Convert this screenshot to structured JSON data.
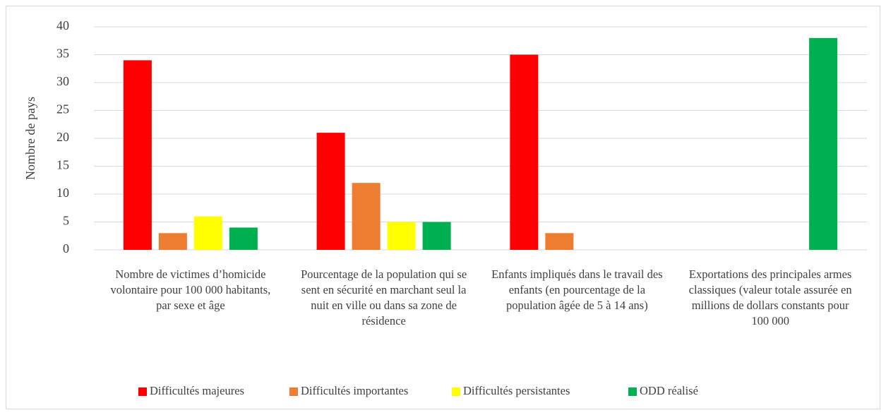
{
  "chart_data": {
    "type": "bar",
    "y_label": "Nombre de pays",
    "categories": [
      "Nombre de victimes d’homicide volontaire pour 100 000 habitants, par sexe et âge",
      "Pourcentage de la population qui se sent en sécurité en marchant seul la nuit en ville ou dans sa zone de résidence",
      "Enfants impliqués dans le travail des enfants (en pourcentage de la population âgée de 5 à 14 ans)",
      "Exportations des principales armes classiques (valeur totale assurée en millions de dollars constants pour 100 000"
    ],
    "series": [
      {
        "name": "Difficultés majeures",
        "color": "#ff0000",
        "values": [
          34,
          21,
          35,
          0
        ]
      },
      {
        "name": "Difficultés importantes",
        "color": "#ed7d31",
        "values": [
          3,
          12,
          3,
          0
        ]
      },
      {
        "name": "Difficultés persistantes",
        "color": "#ffff00",
        "values": [
          6,
          5,
          0,
          0
        ]
      },
      {
        "name": "ODD réalisé",
        "color": "#00b050",
        "values": [
          4,
          5,
          0,
          38
        ]
      }
    ],
    "ylim": [
      0,
      40
    ],
    "yticks": [
      0,
      5,
      10,
      15,
      20,
      25,
      30,
      35,
      40
    ],
    "grid": true,
    "legend": "bottom"
  }
}
